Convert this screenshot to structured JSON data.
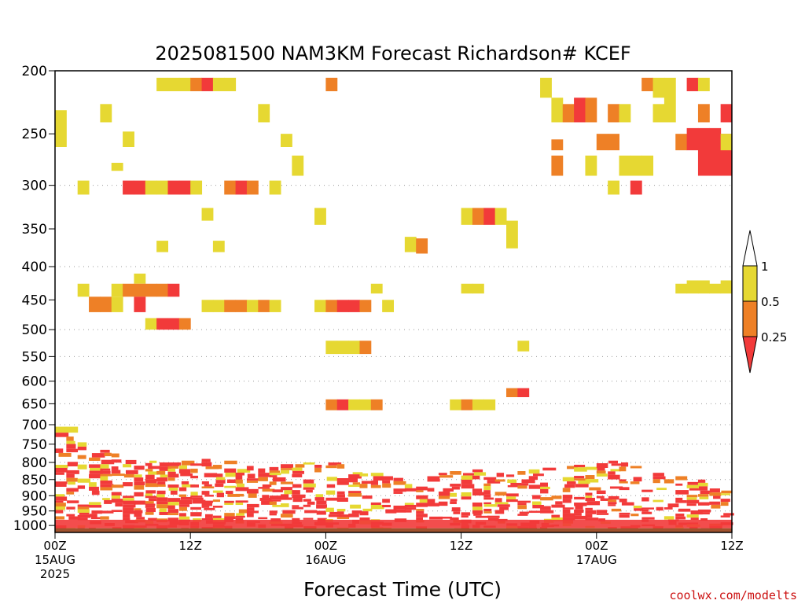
{
  "chart_data": {
    "type": "heatmap",
    "title": "2025081500 NAM3KM Forecast Richardson# KCEF",
    "xlabel": "Forecast Time (UTC)",
    "ylabel": "",
    "credit": "coolwx.com/modelts",
    "y_axis": {
      "scale": "log-pressure",
      "range": [
        1025,
        200
      ],
      "ticks": [
        1000,
        950,
        900,
        850,
        800,
        750,
        700,
        650,
        600,
        550,
        500,
        450,
        400,
        350,
        300,
        250,
        200
      ],
      "grid_levels": [
        950,
        900,
        850,
        800,
        750,
        700,
        650,
        600,
        550,
        500,
        400,
        300
      ]
    },
    "x_axis": {
      "range_hours": [
        0,
        36
      ],
      "ticks": [
        {
          "hour": 0,
          "lines": [
            "00Z",
            "15AUG",
            "2025"
          ]
        },
        {
          "hour": 12,
          "lines": [
            "12Z"
          ]
        },
        {
          "hour": 24,
          "lines": [
            "00Z",
            "16AUG"
          ]
        },
        {
          "hour": 36,
          "lines": [
            "12Z"
          ]
        },
        {
          "hour": 48,
          "lines": [
            "00Z",
            "17AUG"
          ]
        },
        {
          "hour": 60,
          "lines": [
            "12Z"
          ]
        }
      ],
      "axis_hours": [
        0,
        60
      ]
    },
    "legend": {
      "placement": "right",
      "boundaries": [
        "1",
        "0.5",
        "0.25"
      ],
      "bins": [
        {
          "range": "above 1",
          "color": "#ffffff"
        },
        {
          "range": "0.5 to 1",
          "color": "#e6d832"
        },
        {
          "range": "0.25 to 0.5",
          "color": "#ee8026"
        },
        {
          "range": "below 0.25",
          "color": "#f23a3a"
        }
      ]
    },
    "colors": {
      "yellow": "#e6d832",
      "orange": "#ee8026",
      "red": "#f23a3a",
      "ground": "#a0522d"
    },
    "time_step_hours": 1,
    "cells_upper": [
      {
        "h": 0,
        "p": [
          230,
          262
        ],
        "c": "yellow"
      },
      {
        "h": 2,
        "p": [
          295,
          310
        ],
        "c": "yellow"
      },
      {
        "h": 4,
        "p": [
          225,
          240
        ],
        "c": "yellow"
      },
      {
        "h": 5,
        "p": [
          277,
          285
        ],
        "c": "yellow"
      },
      {
        "h": 6,
        "p": [
          248,
          262
        ],
        "c": "yellow"
      },
      {
        "h": 6,
        "p": [
          295,
          310
        ],
        "c": "red"
      },
      {
        "h": 7,
        "p": [
          295,
          310
        ],
        "c": "red"
      },
      {
        "h": 7,
        "p": [
          410,
          425
        ],
        "c": "yellow"
      },
      {
        "h": 8,
        "p": [
          295,
          310
        ],
        "c": "yellow"
      },
      {
        "h": 9,
        "p": [
          205,
          215
        ],
        "c": "yellow"
      },
      {
        "h": 9,
        "p": [
          295,
          310
        ],
        "c": "yellow"
      },
      {
        "h": 9,
        "p": [
          365,
          380
        ],
        "c": "yellow"
      },
      {
        "h": 10,
        "p": [
          205,
          215
        ],
        "c": "yellow"
      },
      {
        "h": 10,
        "p": [
          295,
          310
        ],
        "c": "red"
      },
      {
        "h": 11,
        "p": [
          205,
          215
        ],
        "c": "yellow"
      },
      {
        "h": 11,
        "p": [
          295,
          310
        ],
        "c": "red"
      },
      {
        "h": 12,
        "p": [
          205,
          215
        ],
        "c": "orange"
      },
      {
        "h": 12,
        "p": [
          295,
          310
        ],
        "c": "yellow"
      },
      {
        "h": 13,
        "p": [
          205,
          215
        ],
        "c": "red"
      },
      {
        "h": 13,
        "p": [
          325,
          340
        ],
        "c": "yellow"
      },
      {
        "h": 14,
        "p": [
          205,
          215
        ],
        "c": "yellow"
      },
      {
        "h": 14,
        "p": [
          365,
          380
        ],
        "c": "yellow"
      },
      {
        "h": 15,
        "p": [
          205,
          215
        ],
        "c": "yellow"
      },
      {
        "h": 15,
        "p": [
          295,
          310
        ],
        "c": "orange"
      },
      {
        "h": 16,
        "p": [
          295,
          310
        ],
        "c": "red"
      },
      {
        "h": 17,
        "p": [
          295,
          310
        ],
        "c": "orange"
      },
      {
        "h": 18,
        "p": [
          225,
          240
        ],
        "c": "yellow"
      },
      {
        "h": 19,
        "p": [
          295,
          310
        ],
        "c": "yellow"
      },
      {
        "h": 20,
        "p": [
          250,
          262
        ],
        "c": "yellow"
      },
      {
        "h": 21,
        "p": [
          270,
          290
        ],
        "c": "yellow"
      },
      {
        "h": 23,
        "p": [
          325,
          345
        ],
        "c": "yellow"
      },
      {
        "h": 24,
        "p": [
          205,
          215
        ],
        "c": "orange"
      },
      {
        "h": 31,
        "p": [
          360,
          380
        ],
        "c": "yellow"
      },
      {
        "h": 32,
        "p": [
          362,
          382
        ],
        "c": "orange"
      },
      {
        "h": 36,
        "p": [
          325,
          345
        ],
        "c": "yellow"
      },
      {
        "h": 37,
        "p": [
          325,
          345
        ],
        "c": "orange"
      },
      {
        "h": 38,
        "p": [
          325,
          345
        ],
        "c": "red"
      },
      {
        "h": 39,
        "p": [
          325,
          345
        ],
        "c": "yellow"
      },
      {
        "h": 40,
        "p": [
          340,
          375
        ],
        "c": "yellow"
      },
      {
        "h": 43,
        "p": [
          205,
          220
        ],
        "c": "yellow"
      },
      {
        "h": 44,
        "p": [
          220,
          240
        ],
        "c": "yellow"
      },
      {
        "h": 44,
        "p": [
          255,
          265
        ],
        "c": "orange"
      },
      {
        "h": 44,
        "p": [
          270,
          290
        ],
        "c": "orange"
      },
      {
        "h": 45,
        "p": [
          225,
          240
        ],
        "c": "orange"
      },
      {
        "h": 46,
        "p": [
          220,
          240
        ],
        "c": "red"
      },
      {
        "h": 47,
        "p": [
          220,
          240
        ],
        "c": "orange"
      },
      {
        "h": 47,
        "p": [
          270,
          290
        ],
        "c": "yellow"
      },
      {
        "h": 48,
        "p": [
          250,
          265
        ],
        "c": "orange"
      },
      {
        "h": 49,
        "p": [
          225,
          240
        ],
        "c": "orange"
      },
      {
        "h": 49,
        "p": [
          250,
          265
        ],
        "c": "orange"
      },
      {
        "h": 49,
        "p": [
          295,
          310
        ],
        "c": "yellow"
      },
      {
        "h": 50,
        "p": [
          225,
          240
        ],
        "c": "yellow"
      },
      {
        "h": 50,
        "p": [
          270,
          290
        ],
        "c": "yellow"
      },
      {
        "h": 51,
        "p": [
          270,
          290
        ],
        "c": "yellow"
      },
      {
        "h": 51,
        "p": [
          295,
          310
        ],
        "c": "red"
      },
      {
        "h": 52,
        "p": [
          205,
          215
        ],
        "c": "orange"
      },
      {
        "h": 52,
        "p": [
          270,
          290
        ],
        "c": "yellow"
      },
      {
        "h": 53,
        "p": [
          205,
          220
        ],
        "c": "yellow"
      },
      {
        "h": 53,
        "p": [
          225,
          240
        ],
        "c": "yellow"
      },
      {
        "h": 54,
        "p": [
          205,
          240
        ],
        "c": "yellow"
      },
      {
        "h": 55,
        "p": [
          250,
          265
        ],
        "c": "orange"
      },
      {
        "h": 56,
        "p": [
          205,
          215
        ],
        "c": "red"
      },
      {
        "h": 56,
        "p": [
          245,
          265
        ],
        "c": "red"
      },
      {
        "h": 57,
        "p": [
          205,
          215
        ],
        "c": "yellow"
      },
      {
        "h": 57,
        "p": [
          225,
          240
        ],
        "c": "orange"
      },
      {
        "h": 57,
        "p": [
          245,
          290
        ],
        "c": "red"
      },
      {
        "h": 58,
        "p": [
          245,
          290
        ],
        "c": "red"
      },
      {
        "h": 59,
        "p": [
          225,
          240
        ],
        "c": "red"
      },
      {
        "h": 59,
        "p": [
          250,
          290
        ],
        "c": "red"
      },
      {
        "h": 59,
        "p": [
          250,
          265
        ],
        "c": "yellow"
      }
    ],
    "cells_mid": [
      {
        "h": 2,
        "p": [
          425,
          445
        ],
        "c": "yellow"
      },
      {
        "h": 3,
        "p": [
          445,
          470
        ],
        "c": "orange"
      },
      {
        "h": 4,
        "p": [
          445,
          470
        ],
        "c": "orange"
      },
      {
        "h": 5,
        "p": [
          425,
          445
        ],
        "c": "yellow"
      },
      {
        "h": 5,
        "p": [
          445,
          470
        ],
        "c": "yellow"
      },
      {
        "h": 6,
        "p": [
          425,
          445
        ],
        "c": "orange"
      },
      {
        "h": 7,
        "p": [
          425,
          445
        ],
        "c": "orange"
      },
      {
        "h": 7,
        "p": [
          445,
          470
        ],
        "c": "red"
      },
      {
        "h": 8,
        "p": [
          425,
          445
        ],
        "c": "orange"
      },
      {
        "h": 8,
        "p": [
          480,
          500
        ],
        "c": "yellow"
      },
      {
        "h": 9,
        "p": [
          425,
          445
        ],
        "c": "orange"
      },
      {
        "h": 9,
        "p": [
          480,
          500
        ],
        "c": "red"
      },
      {
        "h": 10,
        "p": [
          425,
          445
        ],
        "c": "red"
      },
      {
        "h": 10,
        "p": [
          480,
          500
        ],
        "c": "red"
      },
      {
        "h": 11,
        "p": [
          480,
          500
        ],
        "c": "orange"
      },
      {
        "h": 13,
        "p": [
          450,
          470
        ],
        "c": "yellow"
      },
      {
        "h": 14,
        "p": [
          450,
          470
        ],
        "c": "yellow"
      },
      {
        "h": 15,
        "p": [
          450,
          470
        ],
        "c": "orange"
      },
      {
        "h": 16,
        "p": [
          450,
          470
        ],
        "c": "orange"
      },
      {
        "h": 17,
        "p": [
          450,
          470
        ],
        "c": "yellow"
      },
      {
        "h": 18,
        "p": [
          450,
          470
        ],
        "c": "orange"
      },
      {
        "h": 19,
        "p": [
          450,
          470
        ],
        "c": "yellow"
      },
      {
        "h": 23,
        "p": [
          450,
          470
        ],
        "c": "yellow"
      },
      {
        "h": 24,
        "p": [
          450,
          470
        ],
        "c": "orange"
      },
      {
        "h": 25,
        "p": [
          450,
          470
        ],
        "c": "red"
      },
      {
        "h": 26,
        "p": [
          450,
          470
        ],
        "c": "red"
      },
      {
        "h": 27,
        "p": [
          450,
          470
        ],
        "c": "orange"
      },
      {
        "h": 29,
        "p": [
          450,
          470
        ],
        "c": "yellow"
      },
      {
        "h": 24,
        "p": [
          520,
          545
        ],
        "c": "yellow"
      },
      {
        "h": 25,
        "p": [
          520,
          545
        ],
        "c": "yellow"
      },
      {
        "h": 26,
        "p": [
          520,
          545
        ],
        "c": "yellow"
      },
      {
        "h": 27,
        "p": [
          520,
          545
        ],
        "c": "orange"
      },
      {
        "h": 28,
        "p": [
          425,
          440
        ],
        "c": "yellow"
      },
      {
        "h": 36,
        "p": [
          425,
          440
        ],
        "c": "yellow"
      },
      {
        "h": 37,
        "p": [
          425,
          440
        ],
        "c": "yellow"
      },
      {
        "h": 41,
        "p": [
          520,
          540
        ],
        "c": "yellow"
      },
      {
        "h": 40,
        "p": [
          615,
          635
        ],
        "c": "orange"
      },
      {
        "h": 41,
        "p": [
          615,
          635
        ],
        "c": "red"
      },
      {
        "h": 55,
        "p": [
          425,
          440
        ],
        "c": "yellow"
      },
      {
        "h": 56,
        "p": [
          420,
          440
        ],
        "c": "yellow"
      },
      {
        "h": 57,
        "p": [
          420,
          440
        ],
        "c": "yellow"
      },
      {
        "h": 58,
        "p": [
          425,
          440
        ],
        "c": "yellow"
      },
      {
        "h": 59,
        "p": [
          420,
          440
        ],
        "c": "yellow"
      },
      {
        "h": 24,
        "p": [
          640,
          665
        ],
        "c": "orange"
      },
      {
        "h": 25,
        "p": [
          640,
          665
        ],
        "c": "red"
      },
      {
        "h": 26,
        "p": [
          640,
          665
        ],
        "c": "yellow"
      },
      {
        "h": 27,
        "p": [
          640,
          665
        ],
        "c": "yellow"
      },
      {
        "h": 28,
        "p": [
          640,
          665
        ],
        "c": "orange"
      },
      {
        "h": 35,
        "p": [
          640,
          665
        ],
        "c": "yellow"
      },
      {
        "h": 36,
        "p": [
          640,
          665
        ],
        "c": "orange"
      },
      {
        "h": 37,
        "p": [
          640,
          665
        ],
        "c": "yellow"
      },
      {
        "h": 38,
        "p": [
          640,
          665
        ],
        "c": "yellow"
      },
      {
        "h": 0,
        "p": [
          705,
          720
        ],
        "c": "yellow"
      },
      {
        "h": 1,
        "p": [
          705,
          720
        ],
        "c": "yellow"
      }
    ],
    "low_level": {
      "p_top": 730,
      "p_bottom": 1015,
      "colors_cycle": [
        "red",
        "orange",
        "yellow",
        "red",
        "red",
        "orange",
        "white",
        "red",
        "yellow",
        "red"
      ],
      "density_by_hour": [
        0.55,
        0.6,
        0.65,
        0.7,
        0.7,
        0.75,
        0.75,
        0.75,
        0.8,
        0.8,
        0.8,
        0.8,
        0.8,
        0.8,
        0.75,
        0.75,
        0.7,
        0.7,
        0.7,
        0.7,
        0.7,
        0.7,
        0.65,
        0.7,
        0.7,
        0.7,
        0.7,
        0.65,
        0.6,
        0.55,
        0.5,
        0.5,
        0.55,
        0.6,
        0.6,
        0.65,
        0.65,
        0.6,
        0.6,
        0.55,
        0.55,
        0.6,
        0.6,
        0.55,
        0.5,
        0.55,
        0.55,
        0.55,
        0.6,
        0.6,
        0.6,
        0.55,
        0.55,
        0.55,
        0.55,
        0.55,
        0.55,
        0.6,
        0.6,
        0.65
      ],
      "top_by_hour": [
        720,
        730,
        745,
        760,
        765,
        775,
        780,
        785,
        795,
        800,
        800,
        795,
        790,
        790,
        795,
        795,
        800,
        810,
        810,
        805,
        805,
        805,
        800,
        800,
        800,
        805,
        810,
        820,
        830,
        840,
        845,
        850,
        845,
        840,
        830,
        825,
        820,
        820,
        830,
        830,
        835,
        825,
        820,
        815,
        815,
        810,
        800,
        800,
        795,
        795,
        800,
        810,
        820,
        830,
        835,
        840,
        845,
        850,
        855,
        860
      ]
    },
    "ground_p": 1010
  }
}
